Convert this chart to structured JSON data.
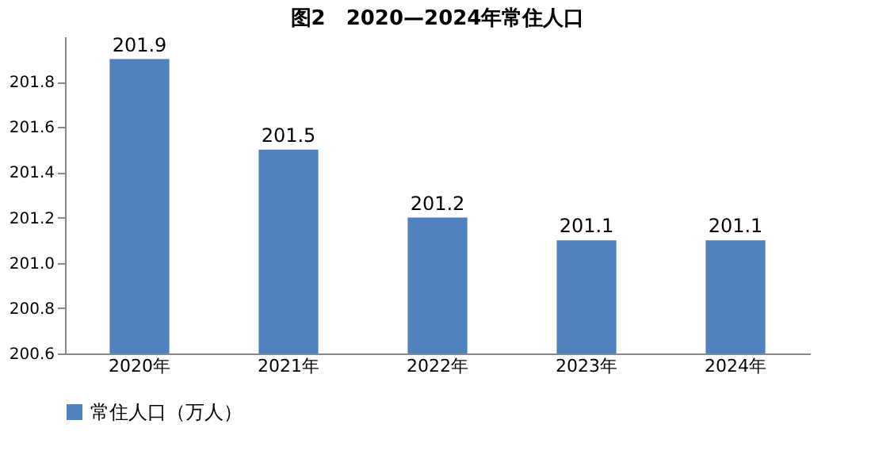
{
  "chart_data": {
    "type": "bar",
    "title": "图2　2020—2024年常住人口",
    "categories": [
      "2020年",
      "2021年",
      "2022年",
      "2023年",
      "2024年"
    ],
    "series": [
      {
        "name": "常住人口（万人）",
        "color": "#4f81bd",
        "values": [
          201.9,
          201.5,
          201.2,
          201.1,
          201.1
        ]
      }
    ],
    "ylim": [
      200.6,
      202.0
    ],
    "yticks": [
      200.6,
      200.8,
      {
        "value": 201,
        "label": "201.0"
      },
      201.2,
      201.4,
      201.6,
      201.8
    ],
    "data_labels": true,
    "grid": false,
    "legend": "bottom"
  }
}
